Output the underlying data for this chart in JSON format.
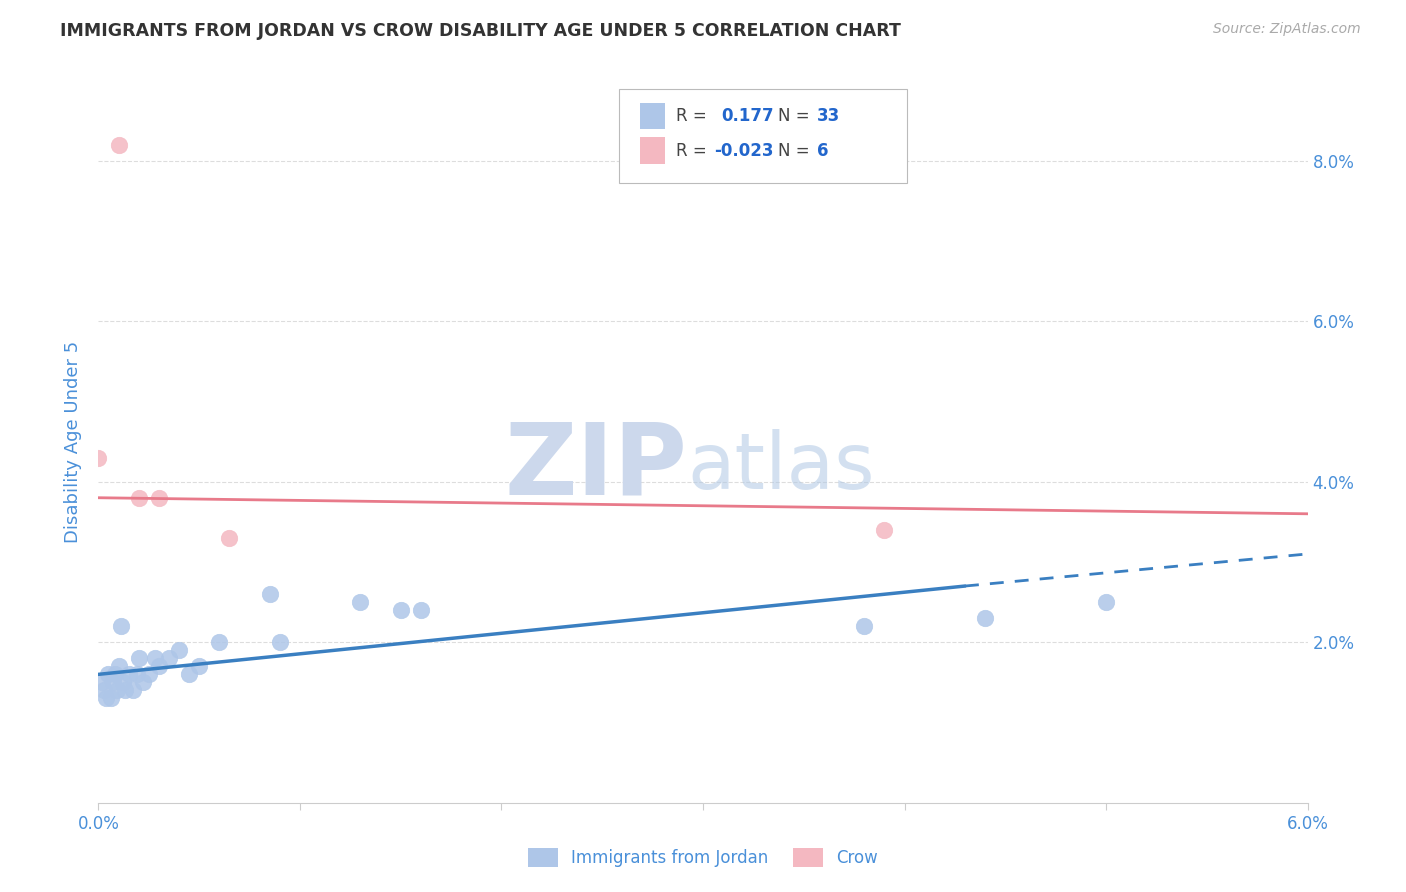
{
  "title": "IMMIGRANTS FROM JORDAN VS CROW DISABILITY AGE UNDER 5 CORRELATION CHART",
  "source": "Source: ZipAtlas.com",
  "ylabel": "Disability Age Under 5",
  "xlim": [
    0.0,
    0.06
  ],
  "ylim": [
    0.0,
    0.09
  ],
  "xtick_positions": [
    0.0,
    0.01,
    0.02,
    0.03,
    0.04,
    0.05,
    0.06
  ],
  "xtick_labels": [
    "0.0%",
    "",
    "",
    "",
    "",
    "",
    "6.0%"
  ],
  "ytick_right_vals": [
    0.0,
    0.02,
    0.04,
    0.06,
    0.08
  ],
  "ytick_right_labels": [
    "",
    "2.0%",
    "4.0%",
    "6.0%",
    "8.0%"
  ],
  "legend_entries": [
    {
      "label": "Immigrants from Jordan",
      "color": "#aec6e8",
      "R": "0.177",
      "N": "33"
    },
    {
      "label": "Crow",
      "color": "#f4b8c1",
      "R": "-0.023",
      "N": "6"
    }
  ],
  "blue_x": [
    0.0002,
    0.0003,
    0.0004,
    0.0005,
    0.0006,
    0.0007,
    0.0008,
    0.0009,
    0.001,
    0.0011,
    0.0012,
    0.0013,
    0.0015,
    0.0017,
    0.0019,
    0.002,
    0.0022,
    0.0025,
    0.0028,
    0.003,
    0.0035,
    0.004,
    0.0045,
    0.005,
    0.006,
    0.0085,
    0.009,
    0.013,
    0.015,
    0.016,
    0.038,
    0.044,
    0.05
  ],
  "blue_y": [
    0.015,
    0.014,
    0.013,
    0.016,
    0.013,
    0.015,
    0.016,
    0.014,
    0.017,
    0.022,
    0.015,
    0.014,
    0.016,
    0.014,
    0.016,
    0.018,
    0.015,
    0.016,
    0.018,
    0.017,
    0.018,
    0.019,
    0.016,
    0.017,
    0.02,
    0.026,
    0.02,
    0.025,
    0.024,
    0.024,
    0.022,
    0.023,
    0.025
  ],
  "pink_x": [
    0.001,
    0.002,
    0.003,
    0.0065,
    0.039,
    0.0
  ],
  "pink_y": [
    0.082,
    0.038,
    0.038,
    0.033,
    0.034,
    0.043
  ],
  "blue_line_solid_x0": 0.0,
  "blue_line_solid_x1": 0.043,
  "blue_line_y0": 0.016,
  "blue_line_y1": 0.027,
  "blue_line_dash_x0": 0.043,
  "blue_line_dash_x1": 0.06,
  "blue_line_dash_y0": 0.027,
  "blue_line_dash_y1": 0.031,
  "pink_line_x0": 0.0,
  "pink_line_x1": 0.06,
  "pink_line_y0": 0.038,
  "pink_line_y1": 0.036,
  "scatter_size": 140,
  "blue_scatter_color": "#aec6e8",
  "pink_scatter_color": "#f4b8c1",
  "blue_line_color": "#3a7fc1",
  "pink_line_color": "#e87a8a",
  "watermark_zip_color": "#ccd8ec",
  "watermark_atlas_color": "#b0c8e4",
  "background_color": "#ffffff",
  "grid_color": "#dddddd",
  "title_color": "#333333",
  "blue_axis_color": "#4a90d9",
  "legend_R_N_color": "#2266cc"
}
